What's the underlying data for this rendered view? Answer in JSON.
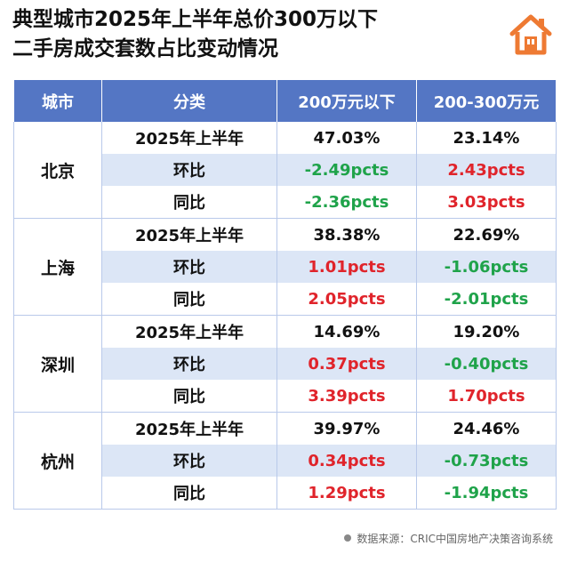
{
  "title": {
    "line1": "典型城市2025年上半年总价300万以下",
    "line2": "二手房成交套数占比变动情况"
  },
  "colors": {
    "header_bg": "#5476c4",
    "stripe": "#dce6f6",
    "positive": "#e0242b",
    "negative": "#1fa34a",
    "logo": "#ee7a33"
  },
  "logo_icon": "house-icon",
  "table": {
    "headers": [
      "城市",
      "分类",
      "200万元以下",
      "200-300万元"
    ],
    "cities": [
      {
        "name": "北京",
        "rows": [
          {
            "label": "2025年上半年",
            "a": "47.03%",
            "b": "23.14%"
          },
          {
            "label": "环比",
            "a": "-2.49pcts",
            "b": "2.43pcts"
          },
          {
            "label": "同比",
            "a": "-2.36pcts",
            "b": "3.03pcts"
          }
        ]
      },
      {
        "name": "上海",
        "rows": [
          {
            "label": "2025年上半年",
            "a": "38.38%",
            "b": "22.69%"
          },
          {
            "label": "环比",
            "a": "1.01pcts",
            "b": "-1.06pcts"
          },
          {
            "label": "同比",
            "a": "2.05pcts",
            "b": "-2.01pcts"
          }
        ]
      },
      {
        "name": "深圳",
        "rows": [
          {
            "label": "2025年上半年",
            "a": "14.69%",
            "b": "19.20%"
          },
          {
            "label": "环比",
            "a": "0.37pcts",
            "b": "-0.40pcts"
          },
          {
            "label": "同比",
            "a": "3.39pcts",
            "b": "1.70pcts"
          }
        ]
      },
      {
        "name": "杭州",
        "rows": [
          {
            "label": "2025年上半年",
            "a": "39.97%",
            "b": "24.46%"
          },
          {
            "label": "环比",
            "a": "0.34pcts",
            "b": "-0.73pcts"
          },
          {
            "label": "同比",
            "a": "1.29pcts",
            "b": "-1.94pcts"
          }
        ]
      }
    ]
  },
  "source": "数据来源：CRIC中国房地产决策咨询系统"
}
